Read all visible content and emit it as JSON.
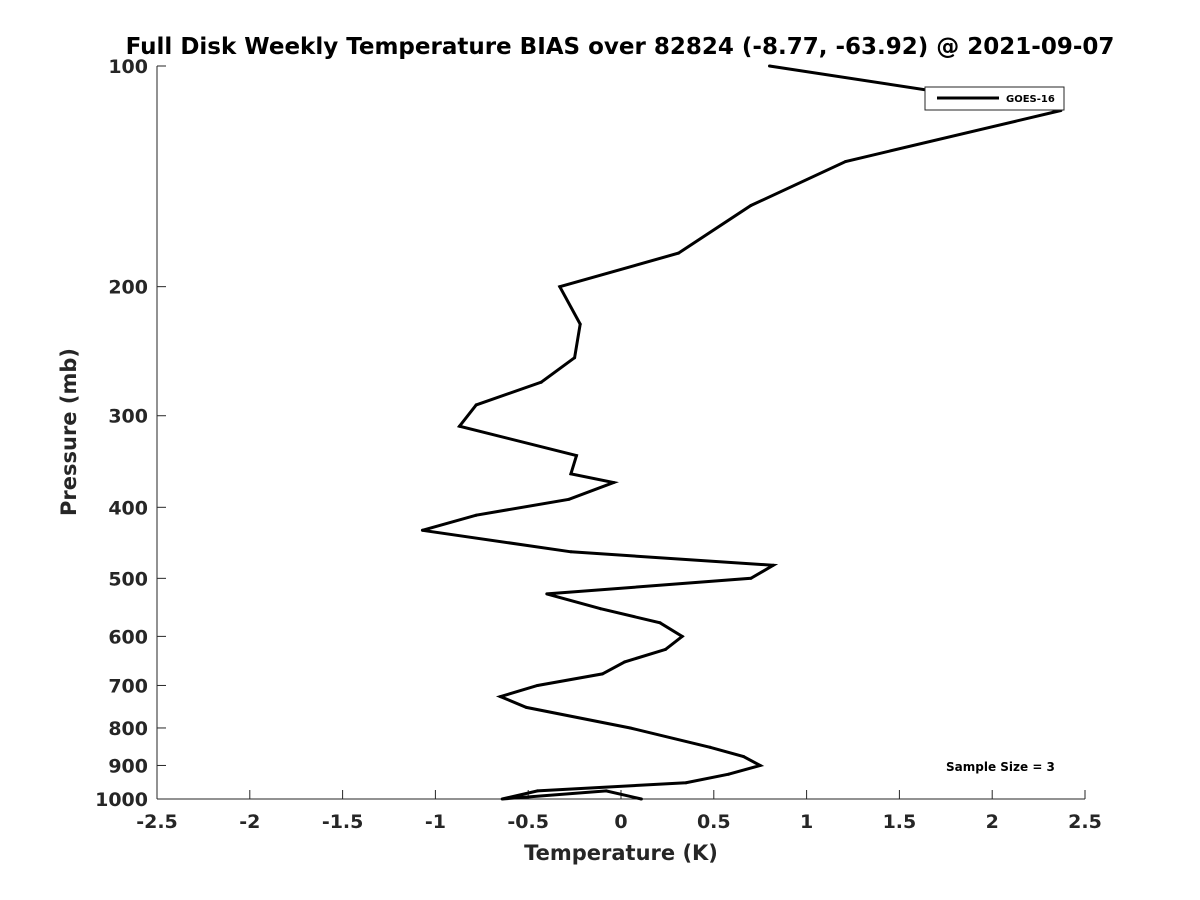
{
  "chart_data": {
    "type": "line",
    "title": "Full Disk Weekly Temperature BIAS over 82824 (-8.77, -63.92) @ 2021-09-07",
    "xlabel": "Temperature (K)",
    "ylabel": "Pressure (mb)",
    "xlim": [
      -2.5,
      2.5
    ],
    "ylim": [
      1000,
      100
    ],
    "y_scale": "log",
    "y_reversed": true,
    "grid": false,
    "legend_position": "top-right",
    "x_ticks": [
      -2.5,
      -2,
      -1.5,
      -1,
      -0.5,
      0,
      0.5,
      1,
      1.5,
      2,
      2.5
    ],
    "x_tick_labels": [
      "-2.5",
      "-2",
      "-1.5",
      "-1",
      "-0.5",
      "0",
      "0.5",
      "1",
      "1.5",
      "2",
      "2.5"
    ],
    "y_ticks": [
      100,
      200,
      300,
      400,
      500,
      600,
      700,
      800,
      900,
      1000
    ],
    "y_tick_labels": [
      "100",
      "200",
      "300",
      "400",
      "500",
      "600",
      "700",
      "800",
      "900",
      "1000"
    ],
    "series": [
      {
        "name": "GOES-16",
        "color": "#000000",
        "temperature": [
          0.8,
          2.37,
          1.21,
          0.7,
          0.31,
          -0.33,
          -0.22,
          -0.25,
          -0.43,
          -0.78,
          -0.87,
          -0.24,
          -0.27,
          -0.04,
          -0.28,
          -0.78,
          -1.07,
          -0.27,
          0.82,
          0.7,
          -0.4,
          -0.11,
          0.21,
          0.33,
          0.24,
          0.02,
          -0.1,
          -0.45,
          -0.65,
          -0.51,
          0.05,
          0.48,
          0.66,
          0.75,
          0.58,
          0.35,
          -0.45,
          -0.64,
          -0.08,
          0.11
        ],
        "pressure": [
          100,
          115,
          135,
          155,
          180,
          200,
          225,
          250,
          270,
          290,
          310,
          340,
          360,
          370,
          390,
          410,
          430,
          460,
          480,
          500,
          525,
          550,
          575,
          600,
          625,
          650,
          675,
          700,
          725,
          750,
          800,
          850,
          875,
          900,
          925,
          950,
          975,
          1000,
          975,
          1000
        ]
      }
    ],
    "annotation": "Sample Size = 3"
  }
}
